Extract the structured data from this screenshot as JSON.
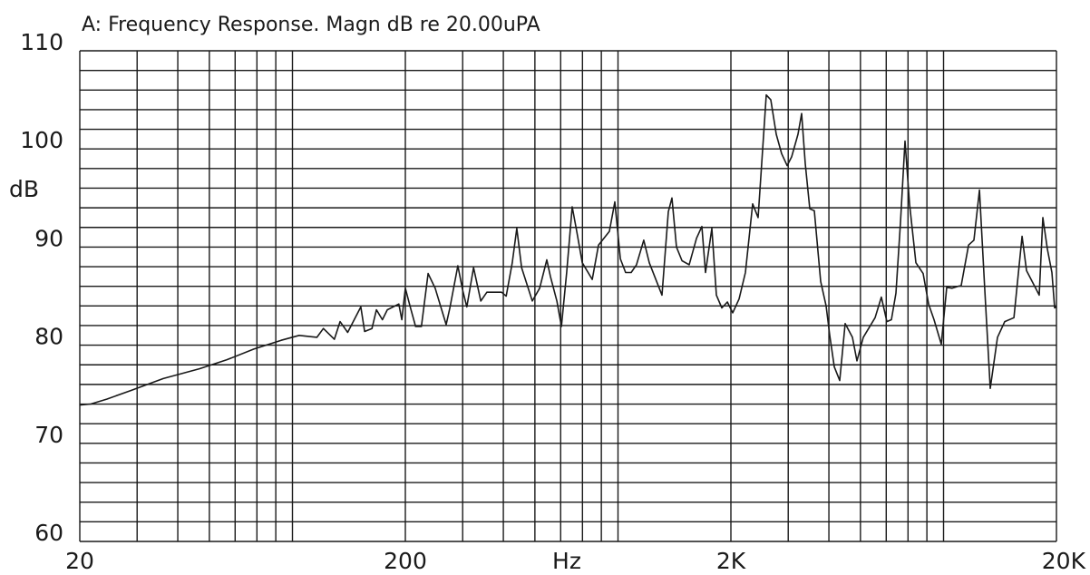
{
  "chart_data": {
    "type": "line",
    "title": "A: Frequency Response. Magn dB re 20.00uPA",
    "xlabel": "Hz",
    "ylabel": "dB",
    "xscale": "log",
    "grid": true,
    "xlim": [
      20,
      20000
    ],
    "ylim": [
      60,
      110
    ],
    "xticks": [
      20,
      200,
      {
        "value": 2000,
        "label": "2K"
      },
      {
        "value": 20000,
        "label": "20K"
      }
    ],
    "yticks": [
      60,
      70,
      80,
      90,
      100,
      110
    ],
    "x_minor_ticks": [
      30,
      40,
      50,
      60,
      70,
      80,
      90,
      300,
      400,
      500,
      600,
      700,
      800,
      900,
      3000,
      4000,
      5000,
      6000,
      7000,
      8000,
      9000
    ],
    "y_minor_ticks": [
      62,
      64,
      66,
      68,
      72,
      74,
      76,
      78,
      82,
      84,
      86,
      88,
      92,
      94,
      96,
      98,
      102,
      104,
      106,
      108
    ],
    "series": [
      {
        "color": "#1a1a1a",
        "x": [
          20,
          21.6,
          24.2,
          28.8,
          36.1,
          46.6,
          56.5,
          68.5,
          83.1,
          94.4,
          107,
          112,
          121,
          126,
          133,
          146,
          150,
          158,
          163,
          170,
          176,
          191,
          195,
          200,
          207,
          215,
          224,
          235,
          247,
          267,
          274,
          290,
          300,
          309,
          324,
          341,
          356,
          395,
          408,
          426,
          440,
          455,
          491,
          517,
          544,
          558,
          584,
          603,
          626,
          651,
          672,
          699,
          750,
          784,
          847,
          880,
          915,
          950,
          988,
          1026,
          1080,
          1123,
          1228,
          1285,
          1318,
          1361,
          1415,
          1489,
          1568,
          1629,
          1671,
          1748,
          1805,
          1876,
          1950,
          2026,
          2119,
          2216,
          2333,
          2424,
          2569,
          2652,
          2756,
          2864,
          2977,
          3073,
          3215,
          3298,
          3384,
          3495,
          3609,
          3775,
          3923,
          4024,
          4155,
          4318,
          4487,
          4724,
          4878,
          5102,
          5544,
          5798,
          6027,
          6223,
          6427,
          6636,
          6853,
          7076,
          7400,
          7788,
          8094,
          8414,
          8857,
          9204,
          9566,
          10200,
          10740,
          11160,
          11600,
          12050,
          12520,
          13180,
          13880,
          14800,
          15680,
          16190,
          17710,
          18170,
          18760,
          19370,
          19740,
          20000
        ],
        "values": [
          73.9,
          74.0,
          74.5,
          75.4,
          76.6,
          77.6,
          78.5,
          79.6,
          80.5,
          81.0,
          80.8,
          81.7,
          80.6,
          82.4,
          81.3,
          83.9,
          81.4,
          81.7,
          83.6,
          82.6,
          83.6,
          84.2,
          82.6,
          85.8,
          83.9,
          81.9,
          81.9,
          87.3,
          85.8,
          82.1,
          83.8,
          88.1,
          85.6,
          83.9,
          87.9,
          84.5,
          85.4,
          85.4,
          85.0,
          88.4,
          91.9,
          87.9,
          84.5,
          85.8,
          88.7,
          87.0,
          84.5,
          81.9,
          87.4,
          94.1,
          91.6,
          88.4,
          86.7,
          90.2,
          91.6,
          94.6,
          88.8,
          87.4,
          87.4,
          88.2,
          90.7,
          88.4,
          85.1,
          93.6,
          95.0,
          90.0,
          88.6,
          88.2,
          90.9,
          92.1,
          87.4,
          91.9,
          85.1,
          83.8,
          84.4,
          83.3,
          84.7,
          87.4,
          94.4,
          93.0,
          105.5,
          105.0,
          101.5,
          99.5,
          98.3,
          99.2,
          101.5,
          103.6,
          98.5,
          93.9,
          93.7,
          86.5,
          84.0,
          81.0,
          77.8,
          76.4,
          82.2,
          80.8,
          78.4,
          80.8,
          82.8,
          84.9,
          82.4,
          82.6,
          85.3,
          92.5,
          100.8,
          94.4,
          88.4,
          87.3,
          84.2,
          82.6,
          80.1,
          85.9,
          85.8,
          86.1,
          90.2,
          90.7,
          95.8,
          85.6,
          75.6,
          80.8,
          82.4,
          82.8,
          91.1,
          87.6,
          85.1,
          93.0,
          89.8,
          87.4,
          83.8,
          83.9
        ]
      }
    ]
  }
}
